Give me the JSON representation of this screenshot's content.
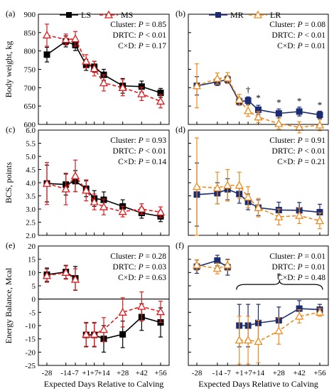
{
  "x_ticks": [
    "-28",
    "-14",
    "-7",
    "+1",
    "+7",
    "+14",
    "+28",
    "+42",
    "+56"
  ],
  "xlabel": "Expected Days Relative to Calving",
  "colors": {
    "LS": "#000000",
    "MS": "#e31a1c",
    "MR": "#1b2c72",
    "LR": "#f08a1c"
  },
  "legend_left": [
    {
      "id": "LS",
      "label": "LS"
    },
    {
      "id": "MS",
      "label": "MS"
    }
  ],
  "legend_right": [
    {
      "id": "MR",
      "label": "MR"
    },
    {
      "id": "LR",
      "label": "LR"
    }
  ],
  "chart_data": [
    {
      "panel": "(a)",
      "type": "line",
      "ylabel": "Body weight, kg",
      "ylim": [
        600,
        900
      ],
      "yticks": [
        600,
        650,
        700,
        750,
        800,
        850,
        900
      ],
      "stats": [
        "Cluster: P = 0.85",
        "DRTC: P < 0.01",
        "C×D: P = 0.17"
      ],
      "series": [
        {
          "name": "LS",
          "x": [
            "-28",
            "-14",
            "-7",
            "+1",
            "+7",
            "+14",
            "+28",
            "+42",
            "+56"
          ],
          "values": [
            790,
            826,
            816,
            762,
            757,
            735,
            705,
            703,
            686
          ],
          "err": [
            20,
            15,
            15,
            15,
            15,
            15,
            20,
            15,
            12
          ]
        },
        {
          "name": "MS",
          "x": [
            "-28",
            "-14",
            "-7",
            "+1",
            "+7",
            "+14",
            "+28",
            "+42",
            "+56"
          ],
          "values": [
            843,
            831,
            833,
            772,
            752,
            713,
            700,
            683,
            663
          ],
          "err": [
            30,
            15,
            20,
            18,
            20,
            22,
            22,
            18,
            18
          ]
        }
      ]
    },
    {
      "panel": "(b)",
      "type": "line",
      "ylabel": "",
      "ylim": [
        600,
        900
      ],
      "yticks": [
        600,
        650,
        700,
        750,
        800,
        850,
        900
      ],
      "stats": [
        "Cluster: P = 0.08",
        "DRTC: P < 0.01",
        "C×D: P = 0.01"
      ],
      "annotations": [
        {
          "x": "+7",
          "y": 686,
          "text": "†"
        },
        {
          "x": "+14",
          "y": 664,
          "text": "*"
        },
        {
          "x": "+28",
          "y": 651,
          "text": "*"
        },
        {
          "x": "+42",
          "y": 655,
          "text": "*"
        },
        {
          "x": "+56",
          "y": 645,
          "text": "*"
        }
      ],
      "series": [
        {
          "name": "MR",
          "x": [
            "-28",
            "-14",
            "-7",
            "+1",
            "+7",
            "+14",
            "+28",
            "+42",
            "+56"
          ],
          "values": [
            705,
            716,
            722,
            662,
            665,
            640,
            630,
            635,
            626
          ],
          "err": [
            25,
            10,
            10,
            10,
            10,
            12,
            12,
            12,
            10
          ]
        },
        {
          "name": "LR",
          "x": [
            "-28",
            "-14",
            "-7",
            "+1",
            "+7",
            "+14",
            "+28",
            "+42",
            "+56"
          ],
          "values": [
            705,
            725,
            726,
            667,
            637,
            620,
            602,
            592,
            598
          ],
          "err": [
            60,
            15,
            15,
            15,
            15,
            15,
            15,
            15,
            15
          ]
        }
      ]
    },
    {
      "panel": "(c)",
      "type": "line",
      "ylabel": "BCS, points",
      "ylim": [
        2.0,
        6.0
      ],
      "yticks": [
        "2.0",
        "2.5",
        "3.0",
        "3.5",
        "4.0",
        "4.5",
        "5.0",
        "5.5",
        "6.0"
      ],
      "stats": [
        "Cluster: P = 0.93",
        "DRTC: P < 0.01",
        "C×D: P = 0.14"
      ],
      "series": [
        {
          "name": "LS",
          "x": [
            "-28",
            "-14",
            "-7",
            "+1",
            "+7",
            "+14",
            "+28",
            "+42",
            "+56"
          ],
          "values": [
            3.97,
            3.93,
            4.06,
            3.77,
            3.4,
            3.35,
            3.1,
            2.85,
            2.72
          ],
          "err": [
            0.7,
            0.4,
            0.4,
            0.3,
            0.3,
            0.3,
            0.25,
            0.2,
            0.2
          ]
        },
        {
          "name": "MS",
          "x": [
            "-28",
            "-14",
            "-7",
            "+1",
            "+7",
            "+14",
            "+28",
            "+42",
            "+56"
          ],
          "values": [
            3.97,
            3.76,
            4.26,
            3.71,
            3.27,
            3.08,
            2.9,
            3.0,
            2.88
          ],
          "err": [
            0.8,
            0.6,
            0.6,
            0.4,
            0.3,
            0.3,
            0.2,
            0.2,
            0.2
          ]
        }
      ]
    },
    {
      "panel": "(d)",
      "type": "line",
      "ylabel": "",
      "ylim": [
        2.0,
        6.0
      ],
      "yticks": [
        "2.0",
        "2.5",
        "3.0",
        "3.5",
        "4.0",
        "4.5",
        "5.0",
        "5.5",
        "6.0"
      ],
      "stats": [
        "Cluster: P = 0.91",
        "DRTC: P < 0.01",
        "C×D: P = 0.21"
      ],
      "series": [
        {
          "name": "MR",
          "x": [
            "-28",
            "-14",
            "-7",
            "+1",
            "+7",
            "+14",
            "+28",
            "+42",
            "+56"
          ],
          "values": [
            3.55,
            3.6,
            3.75,
            3.57,
            3.27,
            3.05,
            2.96,
            2.95,
            2.88
          ],
          "err": [
            1.2,
            0.4,
            0.4,
            0.35,
            0.3,
            0.3,
            0.3,
            0.3,
            0.3
          ]
        },
        {
          "name": "LR",
          "x": [
            "-28",
            "-14",
            "-7",
            "+1",
            "+7",
            "+14",
            "+28",
            "+42",
            "+56"
          ],
          "values": [
            3.85,
            3.8,
            3.9,
            3.9,
            3.45,
            3.05,
            2.7,
            2.75,
            2.55
          ],
          "err": [
            1.85,
            0.6,
            0.6,
            0.5,
            0.4,
            0.35,
            0.3,
            0.3,
            0.3
          ]
        }
      ]
    },
    {
      "panel": "(e)",
      "type": "line",
      "ylabel": "Energy Balance, Mcal",
      "ylim": [
        -25,
        20
      ],
      "yticks": [
        -25,
        -20,
        -15,
        -10,
        -5,
        0,
        5,
        10,
        15,
        20
      ],
      "stats": [
        "Cluster: P = 0.28",
        "DRTC: P = 0.03",
        "C×D: P = 0.63"
      ],
      "series": [
        {
          "name": "LS",
          "x": [
            "-28",
            "-14",
            "-7"
          ],
          "values": [
            9.2,
            10.2,
            7.8
          ],
          "err": [
            2.5,
            2.5,
            4.5
          ]
        },
        {
          "name": "LS",
          "x": [
            "+1",
            "+7",
            "+14",
            "+28",
            "+42",
            "+56"
          ],
          "values": [
            -13.5,
            -13.5,
            -15.0,
            -13.3,
            -6.8,
            -8.8
          ],
          "err": [
            4.5,
            4.5,
            5.0,
            5.0,
            5.0,
            5.5
          ]
        },
        {
          "name": "MS",
          "x": [
            "-28",
            "-14",
            "-7"
          ],
          "values": [
            8.8,
            10.0,
            7.4
          ],
          "err": [
            2.5,
            2.5,
            4.0
          ]
        },
        {
          "name": "MS",
          "x": [
            "+1",
            "+7",
            "+14",
            "+28",
            "+42",
            "+56"
          ],
          "values": [
            -13.3,
            -13.3,
            -11.5,
            -5.0,
            -2.8,
            -4.8
          ],
          "err": [
            4.5,
            4.5,
            4.5,
            5.5,
            5.5,
            4.0
          ]
        }
      ]
    },
    {
      "panel": "(f)",
      "type": "line",
      "ylabel": "",
      "ylim": [
        -25,
        20
      ],
      "yticks": [
        -25,
        -20,
        -15,
        -10,
        -5,
        0,
        5,
        10,
        15,
        20
      ],
      "stats": [
        "Cluster: P = 0.01",
        "DRTC: P = 0.01",
        "C×D: P = 0.48"
      ],
      "annotations": [
        {
          "x": "+28",
          "y": 7.5,
          "text": "*"
        }
      ],
      "series": [
        {
          "name": "MR",
          "x": [
            "-28",
            "-14",
            "-7"
          ],
          "values": [
            12.2,
            14.5,
            12.0
          ],
          "err": [
            2.5,
            2.0,
            3.0
          ]
        },
        {
          "name": "MR",
          "x": [
            "+1",
            "+7",
            "+14",
            "+28",
            "+42",
            "+56"
          ],
          "values": [
            -10.0,
            -10.0,
            -9.0,
            -8.0,
            -3.6,
            -4.0
          ],
          "err": [
            8.0,
            8.0,
            7.0,
            5.0,
            3.0,
            2.0
          ]
        },
        {
          "name": "LR",
          "x": [
            "-28",
            "-14",
            "-7"
          ],
          "values": [
            12.8,
            11.5,
            12.8
          ],
          "err": [
            2.0,
            2.0,
            2.0
          ]
        },
        {
          "name": "LR",
          "x": [
            "+1",
            "+7",
            "+14",
            "+28",
            "+42",
            "+56"
          ],
          "values": [
            -15.5,
            -15.5,
            -16.0,
            -12.0,
            -6.5,
            -5.0
          ],
          "err": [
            9.0,
            9.0,
            8.0,
            5.0,
            2.5,
            1.5
          ]
        }
      ]
    }
  ]
}
